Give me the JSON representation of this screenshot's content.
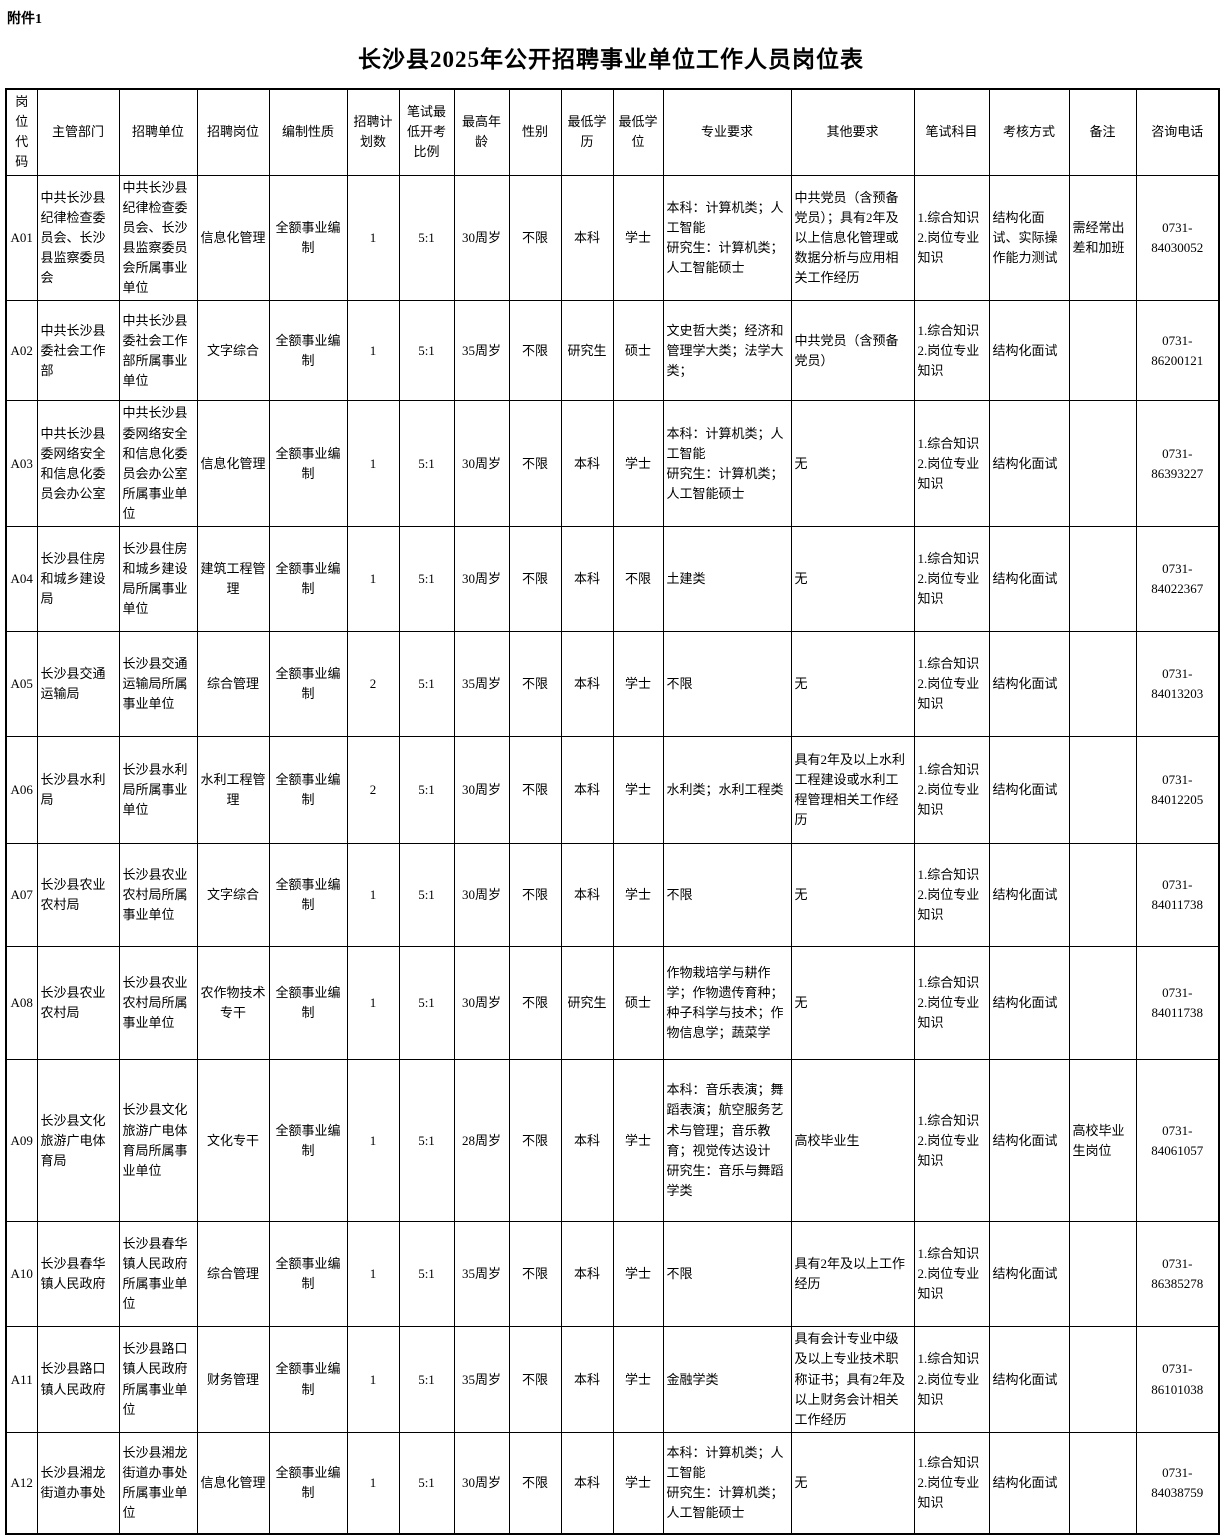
{
  "page": {
    "attachment_label": "附件1",
    "title": "长沙县2025年公开招聘事业单位工作人员岗位表"
  },
  "table": {
    "columns": [
      "岗位代码",
      "主管部门",
      "招聘单位",
      "招聘岗位",
      "编制性质",
      "招聘计划数",
      "笔试最低开考比例",
      "最高年龄",
      "性别",
      "最低学历",
      "最低学位",
      "专业要求",
      "其他要求",
      "笔试科目",
      "考核方式",
      "备注",
      "咨询电话"
    ],
    "rows": [
      [
        "A01",
        "中共长沙县纪律检查委员会、长沙县监察委员会",
        "中共长沙县纪律检查委员会、长沙县监察委员会所属事业单位",
        "信息化管理",
        "全额事业编制",
        "1",
        "5:1",
        "30周岁",
        "不限",
        "本科",
        "学士",
        "本科：计算机类；人工智能\n研究生：计算机类；人工智能硕士",
        "中共党员（含预备党员）；具有2年及以上信息化管理或数据分析与应用相关工作经历",
        "1.综合知识\n2.岗位专业知识",
        "结构化面试、实际操作能力测试",
        "需经常出差和加班",
        "0731-84030052"
      ],
      [
        "A02",
        "中共长沙县委社会工作部",
        "中共长沙县委社会工作部所属事业单位",
        "文字综合",
        "全额事业编制",
        "1",
        "5:1",
        "35周岁",
        "不限",
        "研究生",
        "硕士",
        "文史哲大类；经济和管理学大类；法学大类；",
        "中共党员（含预备党员）",
        "1.综合知识\n2.岗位专业知识",
        "结构化面试",
        "",
        "0731-86200121"
      ],
      [
        "A03",
        "中共长沙县委网络安全和信息化委员会办公室",
        "中共长沙县委网络安全和信息化委员会办公室所属事业单位",
        "信息化管理",
        "全额事业编制",
        "1",
        "5:1",
        "30周岁",
        "不限",
        "本科",
        "学士",
        "本科：计算机类；人工智能\n研究生：计算机类；人工智能硕士",
        "无",
        "1.综合知识\n2.岗位专业知识",
        "结构化面试",
        "",
        "0731-86393227"
      ],
      [
        "A04",
        "长沙县住房和城乡建设局",
        "长沙县住房和城乡建设局所属事业单位",
        "建筑工程管理",
        "全额事业编制",
        "1",
        "5:1",
        "30周岁",
        "不限",
        "本科",
        "不限",
        "土建类",
        "无",
        "1.综合知识\n2.岗位专业知识",
        "结构化面试",
        "",
        "0731-84022367"
      ],
      [
        "A05",
        "长沙县交通运输局",
        "长沙县交通运输局所属事业单位",
        "综合管理",
        "全额事业编制",
        "2",
        "5:1",
        "35周岁",
        "不限",
        "本科",
        "学士",
        "不限",
        "无",
        "1.综合知识\n2.岗位专业知识",
        "结构化面试",
        "",
        "0731-84013203"
      ],
      [
        "A06",
        "长沙县水利局",
        "长沙县水利局所属事业单位",
        "水利工程管理",
        "全额事业编制",
        "2",
        "5:1",
        "30周岁",
        "不限",
        "本科",
        "学士",
        "水利类；水利工程类",
        "具有2年及以上水利工程建设或水利工程管理相关工作经历",
        "1.综合知识\n2.岗位专业知识",
        "结构化面试",
        "",
        "0731-84012205"
      ],
      [
        "A07",
        "长沙县农业农村局",
        "长沙县农业农村局所属事业单位",
        "文字综合",
        "全额事业编制",
        "1",
        "5:1",
        "30周岁",
        "不限",
        "本科",
        "学士",
        "不限",
        "无",
        "1.综合知识\n2.岗位专业知识",
        "结构化面试",
        "",
        "0731-84011738"
      ],
      [
        "A08",
        "长沙县农业农村局",
        "长沙县农业农村局所属事业单位",
        "农作物技术专干",
        "全额事业编制",
        "1",
        "5:1",
        "30周岁",
        "不限",
        "研究生",
        "硕士",
        "作物栽培学与耕作学；作物遗传育种；种子科学与技术；作物信息学；蔬菜学",
        "无",
        "1.综合知识\n2.岗位专业知识",
        "结构化面试",
        "",
        "0731-84011738"
      ],
      [
        "A09",
        "长沙县文化旅游广电体育局",
        "长沙县文化旅游广电体育局所属事业单位",
        "文化专干",
        "全额事业编制",
        "1",
        "5:1",
        "28周岁",
        "不限",
        "本科",
        "学士",
        "本科：音乐表演；舞蹈表演；航空服务艺术与管理；音乐教育；视觉传达设计\n研究生：音乐与舞蹈学类",
        "高校毕业生",
        "1.综合知识\n2.岗位专业知识",
        "结构化面试",
        "高校毕业生岗位",
        "0731-84061057"
      ],
      [
        "A10",
        "长沙县春华镇人民政府",
        "长沙县春华镇人民政府所属事业单位",
        "综合管理",
        "全额事业编制",
        "1",
        "5:1",
        "35周岁",
        "不限",
        "本科",
        "学士",
        "不限",
        "具有2年及以上工作经历",
        "1.综合知识\n2.岗位专业知识",
        "结构化面试",
        "",
        "0731-86385278"
      ],
      [
        "A11",
        "长沙县路口镇人民政府",
        "长沙县路口镇人民政府所属事业单位",
        "财务管理",
        "全额事业编制",
        "1",
        "5:1",
        "35周岁",
        "不限",
        "本科",
        "学士",
        "金融学类",
        "具有会计专业中级及以上专业技术职称证书；具有2年及以上财务会计相关工作经历",
        "1.综合知识\n2.岗位专业知识",
        "结构化面试",
        "",
        "0731-86101038"
      ],
      [
        "A12",
        "长沙县湘龙街道办事处",
        "长沙县湘龙街道办事处所属事业单位",
        "信息化管理",
        "全额事业编制",
        "1",
        "5:1",
        "30周岁",
        "不限",
        "本科",
        "学士",
        "本科：计算机类；人工智能\n研究生：计算机类；人工智能硕士",
        "无",
        "1.综合知识\n2.岗位专业知识",
        "结构化面试",
        "",
        "0731-84038759"
      ]
    ]
  }
}
